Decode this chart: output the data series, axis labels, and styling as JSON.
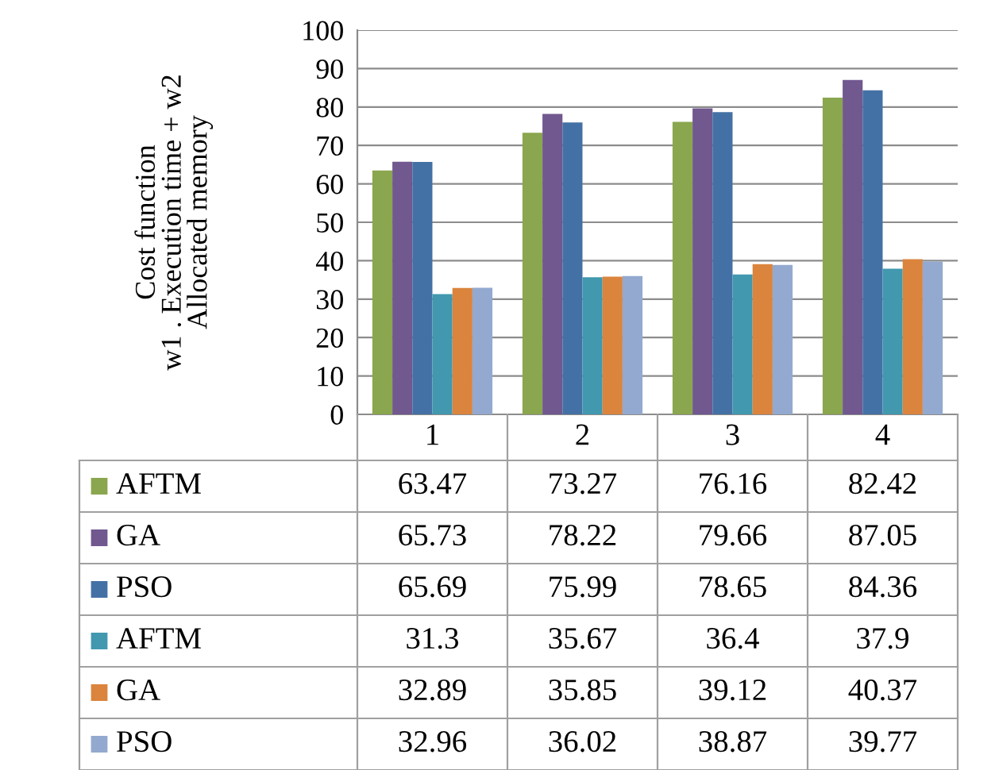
{
  "chart_data": {
    "type": "bar",
    "ylabel": "Cost function\nw1 . Execution time + w2\nAllocated memory",
    "categories": [
      "1",
      "2",
      "3",
      "4"
    ],
    "series": [
      {
        "name": "AFTM",
        "color": "#8aa64e",
        "values": [
          63.47,
          73.27,
          76.16,
          82.42
        ]
      },
      {
        "name": "GA",
        "color": "#71588f",
        "values": [
          65.73,
          78.22,
          79.66,
          87.05
        ]
      },
      {
        "name": "PSO",
        "color": "#4471a5",
        "values": [
          65.69,
          75.99,
          78.65,
          84.36
        ]
      },
      {
        "name": "AFTM",
        "color": "#4198af",
        "values": [
          31.3,
          35.67,
          36.4,
          37.9
        ]
      },
      {
        "name": "GA",
        "color": "#db843d",
        "values": [
          32.89,
          35.85,
          39.12,
          40.37
        ]
      },
      {
        "name": "PSO",
        "color": "#93a9cf",
        "values": [
          32.96,
          36.02,
          38.87,
          39.77
        ]
      }
    ],
    "ylim": [
      0,
      100
    ],
    "yticks": [
      0,
      10,
      20,
      30,
      40,
      50,
      60,
      70,
      80,
      90,
      100
    ],
    "grid": "y",
    "data_labels": true,
    "legend": "bottom"
  }
}
